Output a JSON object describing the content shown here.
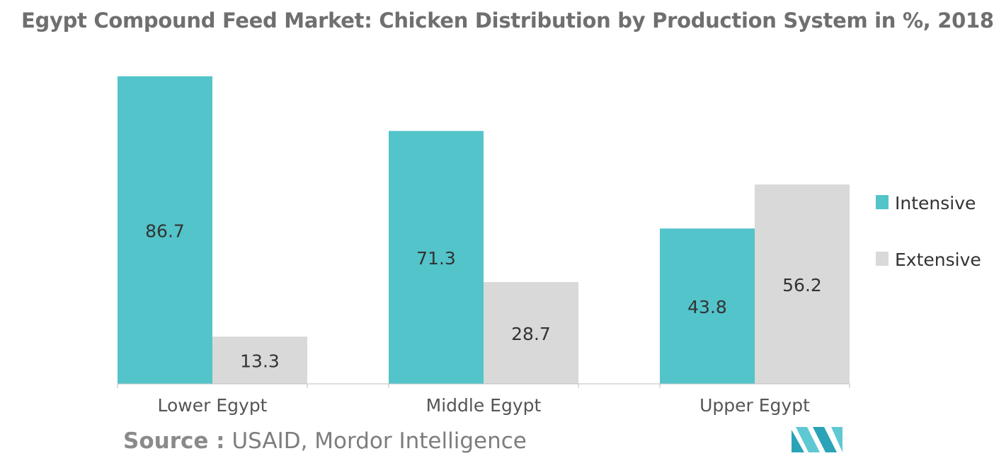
{
  "title": "Egypt Compound Feed Market: Chicken Distribution by Production System in %, 2018",
  "source": {
    "label": "Source :",
    "text": "USAID, Mordor Intelligence"
  },
  "colors": {
    "intensive": "#52c4ca",
    "extensive": "#d9d9d9",
    "label_text": "#333333",
    "axis_text": "#555555",
    "axis_line": "#bfbfbf",
    "logo": "#2aa3b8"
  },
  "chart_data": {
    "type": "bar",
    "title": "Egypt Compound Feed Market: Chicken Distribution by Production System in %, 2018",
    "xlabel": "",
    "ylabel": "",
    "categories": [
      "Lower Egypt",
      "Middle Egypt",
      "Upper Egypt"
    ],
    "series": [
      {
        "name": "Intensive",
        "values": [
          86.7,
          71.3,
          43.8
        ]
      },
      {
        "name": "Extensive",
        "values": [
          13.3,
          28.7,
          56.2
        ]
      }
    ],
    "ylim": [
      0,
      86.7
    ],
    "grid": false,
    "legend": "right",
    "data_labels": true
  }
}
